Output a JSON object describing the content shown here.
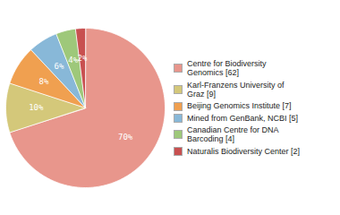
{
  "chart_data": {
    "type": "pie",
    "categories": [
      "Centre for Biodiversity\nGenomics [62]",
      "Karl-Franzens University of\nGraz [9]",
      "Beijing Genomics Institute [7]",
      "Mined from GenBank, NCBI [5]",
      "Canadian Centre for DNA\nBarcoding [4]",
      "Naturalis Biodiversity Center [2]"
    ],
    "values": [
      70,
      10,
      8,
      6,
      4,
      2
    ],
    "value_labels": [
      "70%",
      "10%",
      "8%",
      "6%",
      "4%",
      "2%"
    ],
    "colors": [
      "#e8968c",
      "#d4c87a",
      "#f0a050",
      "#88b8d8",
      "#9ec87a",
      "#c85050"
    ],
    "data_labels": true,
    "legend": "right"
  }
}
